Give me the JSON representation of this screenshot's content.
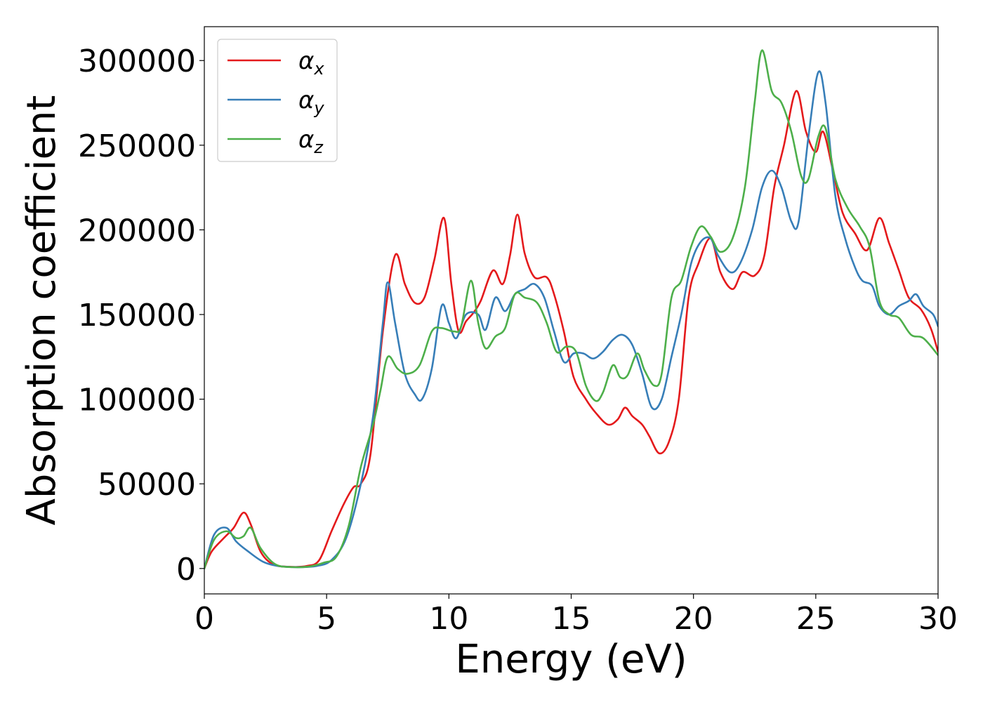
{
  "chart_data": {
    "type": "line",
    "xlabel": "Energy (eV)",
    "ylabel": "Absorption coefficient",
    "xlim": [
      0,
      30
    ],
    "ylim": [
      -15000,
      320000
    ],
    "x_ticks": [
      0,
      5,
      10,
      15,
      20,
      25,
      30
    ],
    "y_ticks": [
      0,
      50000,
      100000,
      150000,
      200000,
      250000,
      300000
    ],
    "grid": false,
    "legend_position": "upper-left",
    "series": [
      {
        "name": "α",
        "name_sub": "x",
        "color": "#e41a1c",
        "points": [
          [
            0,
            0
          ],
          [
            0.3,
            10000
          ],
          [
            0.8,
            18000
          ],
          [
            1.2,
            24000
          ],
          [
            1.6,
            33000
          ],
          [
            1.9,
            26000
          ],
          [
            2.3,
            10000
          ],
          [
            2.8,
            2500
          ],
          [
            3.5,
            1000
          ],
          [
            4.2,
            1500
          ],
          [
            4.7,
            5000
          ],
          [
            5.2,
            22000
          ],
          [
            5.7,
            38000
          ],
          [
            6.1,
            48000
          ],
          [
            6.4,
            50000
          ],
          [
            6.8,
            68000
          ],
          [
            7.3,
            140000
          ],
          [
            7.8,
            185000
          ],
          [
            8.2,
            168000
          ],
          [
            8.6,
            157000
          ],
          [
            9.0,
            160000
          ],
          [
            9.4,
            182000
          ],
          [
            9.8,
            207000
          ],
          [
            10.1,
            168000
          ],
          [
            10.4,
            140000
          ],
          [
            10.7,
            146000
          ],
          [
            11.0,
            151000
          ],
          [
            11.3,
            158000
          ],
          [
            11.8,
            176000
          ],
          [
            12.2,
            168000
          ],
          [
            12.5,
            185000
          ],
          [
            12.8,
            209000
          ],
          [
            13.1,
            186000
          ],
          [
            13.5,
            172000
          ],
          [
            14.0,
            172000
          ],
          [
            14.3,
            162000
          ],
          [
            14.7,
            140000
          ],
          [
            15.1,
            113000
          ],
          [
            15.6,
            100000
          ],
          [
            16.0,
            92000
          ],
          [
            16.5,
            85000
          ],
          [
            16.9,
            88000
          ],
          [
            17.2,
            95000
          ],
          [
            17.5,
            90000
          ],
          [
            17.9,
            85000
          ],
          [
            18.2,
            78000
          ],
          [
            18.6,
            68000
          ],
          [
            19.0,
            75000
          ],
          [
            19.4,
            100000
          ],
          [
            19.8,
            160000
          ],
          [
            20.2,
            180000
          ],
          [
            20.7,
            195000
          ],
          [
            21.1,
            175000
          ],
          [
            21.6,
            165000
          ],
          [
            22.0,
            175000
          ],
          [
            22.5,
            173000
          ],
          [
            22.9,
            185000
          ],
          [
            23.3,
            225000
          ],
          [
            23.7,
            250000
          ],
          [
            24.2,
            282000
          ],
          [
            24.6,
            258000
          ],
          [
            25.0,
            246000
          ],
          [
            25.3,
            258000
          ],
          [
            25.7,
            235000
          ],
          [
            26.1,
            210000
          ],
          [
            26.6,
            198000
          ],
          [
            27.1,
            188000
          ],
          [
            27.6,
            207000
          ],
          [
            28.0,
            192000
          ],
          [
            28.4,
            176000
          ],
          [
            28.8,
            160000
          ],
          [
            29.3,
            153000
          ],
          [
            29.7,
            142000
          ],
          [
            30.0,
            128000
          ]
        ]
      },
      {
        "name": "α",
        "name_sub": "y",
        "color": "#377eb8",
        "points": [
          [
            0,
            0
          ],
          [
            0.4,
            20000
          ],
          [
            0.9,
            24000
          ],
          [
            1.3,
            16000
          ],
          [
            1.8,
            10000
          ],
          [
            2.4,
            4000
          ],
          [
            3.0,
            1500
          ],
          [
            3.8,
            800
          ],
          [
            4.6,
            1500
          ],
          [
            5.2,
            5000
          ],
          [
            5.8,
            18000
          ],
          [
            6.4,
            50000
          ],
          [
            6.9,
            90000
          ],
          [
            7.3,
            145000
          ],
          [
            7.5,
            169000
          ],
          [
            7.8,
            145000
          ],
          [
            8.2,
            115000
          ],
          [
            8.6,
            103000
          ],
          [
            8.9,
            100000
          ],
          [
            9.3,
            118000
          ],
          [
            9.7,
            155000
          ],
          [
            10.0,
            145000
          ],
          [
            10.3,
            136000
          ],
          [
            10.7,
            150000
          ],
          [
            11.2,
            150000
          ],
          [
            11.5,
            141000
          ],
          [
            11.9,
            160000
          ],
          [
            12.3,
            152000
          ],
          [
            12.7,
            162000
          ],
          [
            13.1,
            165000
          ],
          [
            13.5,
            168000
          ],
          [
            13.9,
            160000
          ],
          [
            14.3,
            140000
          ],
          [
            14.7,
            122000
          ],
          [
            15.1,
            127000
          ],
          [
            15.5,
            127000
          ],
          [
            15.9,
            124000
          ],
          [
            16.3,
            128000
          ],
          [
            16.7,
            135000
          ],
          [
            17.1,
            138000
          ],
          [
            17.5,
            132000
          ],
          [
            17.9,
            115000
          ],
          [
            18.3,
            95000
          ],
          [
            18.7,
            100000
          ],
          [
            19.1,
            125000
          ],
          [
            19.5,
            150000
          ],
          [
            19.9,
            180000
          ],
          [
            20.3,
            193000
          ],
          [
            20.7,
            195000
          ],
          [
            21.0,
            185000
          ],
          [
            21.5,
            175000
          ],
          [
            21.9,
            180000
          ],
          [
            22.4,
            200000
          ],
          [
            22.8,
            225000
          ],
          [
            23.2,
            235000
          ],
          [
            23.6,
            225000
          ],
          [
            24.0,
            205000
          ],
          [
            24.3,
            205000
          ],
          [
            24.7,
            255000
          ],
          [
            25.1,
            293000
          ],
          [
            25.4,
            275000
          ],
          [
            25.8,
            220000
          ],
          [
            26.2,
            195000
          ],
          [
            26.6,
            178000
          ],
          [
            26.9,
            170000
          ],
          [
            27.3,
            167000
          ],
          [
            27.6,
            155000
          ],
          [
            28.0,
            150000
          ],
          [
            28.4,
            155000
          ],
          [
            28.8,
            158000
          ],
          [
            29.1,
            162000
          ],
          [
            29.4,
            155000
          ],
          [
            29.8,
            150000
          ],
          [
            30.0,
            143000
          ]
        ]
      },
      {
        "name": "α",
        "name_sub": "z",
        "color": "#4daf4a",
        "points": [
          [
            0,
            0
          ],
          [
            0.4,
            17000
          ],
          [
            0.9,
            22000
          ],
          [
            1.3,
            18000
          ],
          [
            1.6,
            19000
          ],
          [
            1.9,
            24000
          ],
          [
            2.3,
            12000
          ],
          [
            2.9,
            2500
          ],
          [
            3.6,
            800
          ],
          [
            4.3,
            1200
          ],
          [
            4.9,
            3500
          ],
          [
            5.4,
            7000
          ],
          [
            5.9,
            25000
          ],
          [
            6.4,
            60000
          ],
          [
            6.9,
            85000
          ],
          [
            7.2,
            105000
          ],
          [
            7.5,
            125000
          ],
          [
            7.9,
            118000
          ],
          [
            8.3,
            115000
          ],
          [
            8.8,
            120000
          ],
          [
            9.3,
            140000
          ],
          [
            9.7,
            142000
          ],
          [
            10.2,
            140000
          ],
          [
            10.5,
            143000
          ],
          [
            10.9,
            170000
          ],
          [
            11.2,
            145000
          ],
          [
            11.5,
            130000
          ],
          [
            11.9,
            137000
          ],
          [
            12.3,
            142000
          ],
          [
            12.7,
            162000
          ],
          [
            13.1,
            160000
          ],
          [
            13.6,
            157000
          ],
          [
            14.0,
            145000
          ],
          [
            14.4,
            128000
          ],
          [
            14.8,
            131000
          ],
          [
            15.2,
            128000
          ],
          [
            15.6,
            108000
          ],
          [
            16.0,
            99000
          ],
          [
            16.3,
            104000
          ],
          [
            16.7,
            120000
          ],
          [
            17.0,
            113000
          ],
          [
            17.3,
            114000
          ],
          [
            17.7,
            127000
          ],
          [
            18.0,
            117000
          ],
          [
            18.4,
            108000
          ],
          [
            18.7,
            115000
          ],
          [
            19.1,
            160000
          ],
          [
            19.5,
            170000
          ],
          [
            19.9,
            190000
          ],
          [
            20.3,
            202000
          ],
          [
            20.7,
            196000
          ],
          [
            21.1,
            187000
          ],
          [
            21.6,
            195000
          ],
          [
            22.1,
            225000
          ],
          [
            22.5,
            275000
          ],
          [
            22.8,
            306000
          ],
          [
            23.2,
            282000
          ],
          [
            23.6,
            275000
          ],
          [
            24.0,
            258000
          ],
          [
            24.4,
            232000
          ],
          [
            24.7,
            230000
          ],
          [
            25.1,
            255000
          ],
          [
            25.4,
            260000
          ],
          [
            25.8,
            230000
          ],
          [
            26.3,
            213000
          ],
          [
            26.8,
            202000
          ],
          [
            27.2,
            190000
          ],
          [
            27.6,
            158000
          ],
          [
            28.0,
            150000
          ],
          [
            28.4,
            148000
          ],
          [
            28.9,
            138000
          ],
          [
            29.4,
            136000
          ],
          [
            30.0,
            126000
          ]
        ]
      }
    ]
  }
}
